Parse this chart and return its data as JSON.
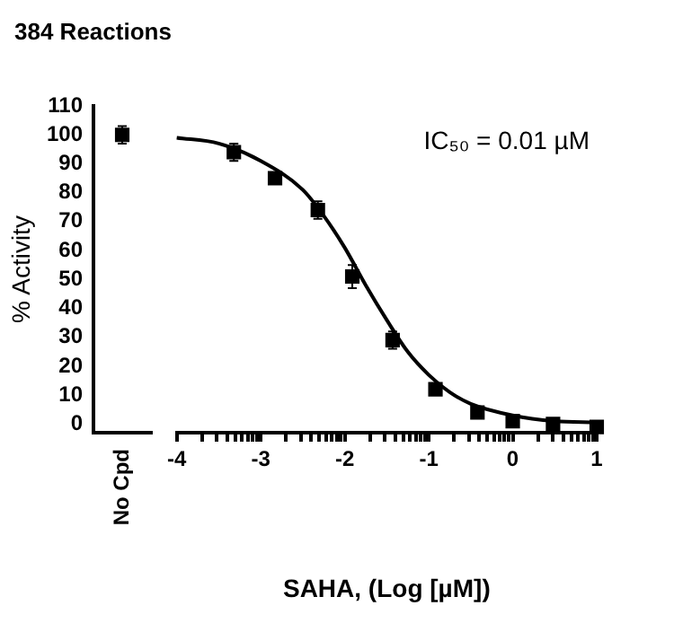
{
  "chart_data": [
    {
      "type": "scatter",
      "title": "384 Reactions",
      "ylabel": "% Activity",
      "categories": [
        "No Cpd"
      ],
      "values": [
        100
      ],
      "errors": [
        3
      ],
      "color": "#000000",
      "marker": "square",
      "ylim": [
        -3,
        110
      ],
      "yticks": [
        0,
        10,
        20,
        30,
        40,
        50,
        60,
        70,
        80,
        90,
        100,
        110
      ],
      "grid": false,
      "legend": false
    },
    {
      "type": "scatter",
      "xlabel": "SAHA, (Log [µM])",
      "annotations": [
        "IC₅₀ = 0.01 µM"
      ],
      "marker": "square",
      "grid": false,
      "legend": false,
      "tick_labels": "x",
      "xlim": [
        -4,
        1
      ],
      "ylim": [
        -3,
        110
      ],
      "xticks": [
        -4,
        {
          "value": -3.699,
          "label": null
        },
        {
          "value": -3.523,
          "label": null
        },
        {
          "value": -3.398,
          "label": null
        },
        {
          "value": -3.301,
          "label": null
        },
        {
          "value": -3.222,
          "label": null
        },
        {
          "value": -3.155,
          "label": null
        },
        {
          "value": -3.097,
          "label": null
        },
        {
          "value": -3.046,
          "label": null
        },
        -3,
        {
          "value": -2.699,
          "label": null
        },
        {
          "value": -2.523,
          "label": null
        },
        {
          "value": -2.398,
          "label": null
        },
        {
          "value": -2.301,
          "label": null
        },
        {
          "value": -2.222,
          "label": null
        },
        {
          "value": -2.155,
          "label": null
        },
        {
          "value": -2.097,
          "label": null
        },
        {
          "value": -2.046,
          "label": null
        },
        -2,
        {
          "value": -1.699,
          "label": null
        },
        {
          "value": -1.523,
          "label": null
        },
        {
          "value": -1.398,
          "label": null
        },
        {
          "value": -1.301,
          "label": null
        },
        {
          "value": -1.222,
          "label": null
        },
        {
          "value": -1.155,
          "label": null
        },
        {
          "value": -1.097,
          "label": null
        },
        {
          "value": -1.046,
          "label": null
        },
        -1,
        {
          "value": -0.699,
          "label": null
        },
        {
          "value": -0.523,
          "label": null
        },
        {
          "value": -0.398,
          "label": null
        },
        {
          "value": -0.301,
          "label": null
        },
        {
          "value": -0.222,
          "label": null
        },
        {
          "value": -0.155,
          "label": null
        },
        {
          "value": -0.097,
          "label": null
        },
        {
          "value": -0.046,
          "label": null
        },
        0,
        {
          "value": 0.301,
          "label": null
        },
        {
          "value": 0.477,
          "label": null
        },
        {
          "value": 0.602,
          "label": null
        },
        {
          "value": 0.699,
          "label": null
        },
        {
          "value": 0.778,
          "label": null
        },
        {
          "value": 0.845,
          "label": null
        },
        {
          "value": 0.903,
          "label": null
        },
        {
          "value": 0.954,
          "label": null
        },
        1
      ],
      "series": [
        {
          "color": "#000000",
          "x": [
            -3.32,
            -2.83,
            -2.32,
            -1.91,
            -1.43,
            -0.92,
            -0.42,
            0,
            0.48,
            1
          ],
          "values": [
            94,
            85,
            74,
            51,
            29,
            12,
            4,
            1,
            0,
            -1
          ],
          "errors": [
            3,
            null,
            3,
            4,
            3,
            null,
            null,
            null,
            null,
            null
          ]
        },
        {
          "type": "line",
          "marker": "none",
          "color": "#000000",
          "x": [
            -4,
            -3.5,
            -3,
            -2.5,
            -2.25,
            -2,
            -1.75,
            -1.5,
            -1.25,
            -1,
            -0.75,
            -0.5,
            0,
            0.5,
            1
          ],
          "values": [
            99,
            97,
            91,
            81,
            72,
            61,
            48,
            36,
            25,
            17,
            11,
            7,
            3,
            1,
            0.5
          ]
        }
      ]
    }
  ]
}
